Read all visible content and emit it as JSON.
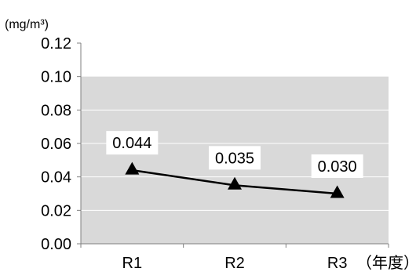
{
  "chart_data": {
    "type": "line",
    "title": "",
    "xlabel": "（年度）",
    "ylabel": "(mg/m³)",
    "categories": [
      "R1",
      "R2",
      "R3"
    ],
    "series": [
      {
        "values": [
          0.044,
          0.035,
          0.03
        ],
        "marker": "triangle"
      }
    ],
    "data_labels": [
      "0.044",
      "0.035",
      "0.030"
    ],
    "ylim": [
      0,
      0.12
    ],
    "ytick_labels": [
      "0.12",
      "0.10",
      "0.08",
      "0.06",
      "0.04",
      "0.02",
      "0.00"
    ],
    "shaded_band": [
      0,
      0.1
    ],
    "grid": true,
    "colors": {
      "band": "#d9d9d9",
      "grid": "#ffffff",
      "axis": "#7f7f7f",
      "line": "#000000",
      "label_bg": "#ffffff"
    }
  }
}
